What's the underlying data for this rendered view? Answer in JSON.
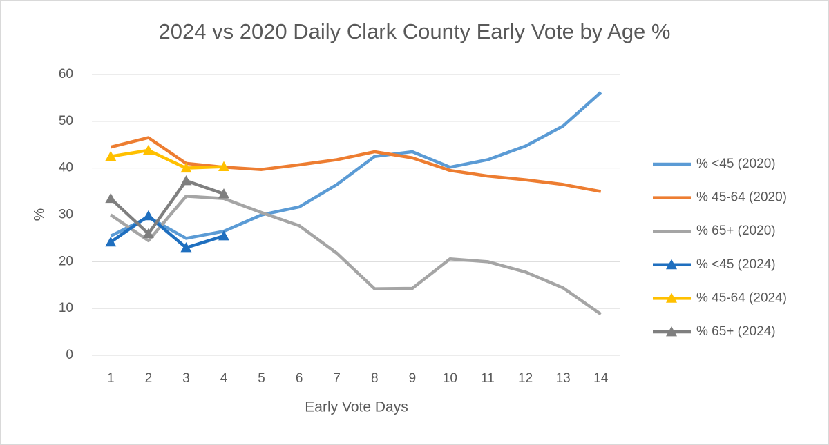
{
  "chart_data": {
    "type": "line",
    "title": "2024 vs 2020 Daily Clark County Early Vote by Age %",
    "x_label": "Early Vote Days",
    "y_label": "%",
    "x": [
      1,
      2,
      3,
      4,
      5,
      6,
      7,
      8,
      9,
      10,
      11,
      12,
      13,
      14
    ],
    "xlim": [
      0.5,
      14.5
    ],
    "xticks": [
      1,
      2,
      3,
      4,
      5,
      6,
      7,
      8,
      9,
      10,
      11,
      12,
      13,
      14
    ],
    "ylim": [
      0,
      60
    ],
    "yticks": [
      0,
      10,
      20,
      30,
      40,
      50,
      60
    ],
    "grid": true,
    "legend": "right",
    "series": [
      {
        "name": "% <45 (2020)",
        "color": "#5b9bd5",
        "values": [
          25.5,
          29.5,
          25,
          26.5,
          30,
          31.7,
          36.5,
          42.5,
          43.5,
          40.2,
          41.8,
          44.7,
          49,
          56.2
        ]
      },
      {
        "name": "% 45-64 (2020)",
        "color": "#ed7d31",
        "values": [
          44.5,
          46.5,
          41,
          40.2,
          39.7,
          40.7,
          41.8,
          43.5,
          42.2,
          39.5,
          38.3,
          37.5,
          36.5,
          35
        ]
      },
      {
        "name": "% 65+ (2020)",
        "color": "#a5a5a5",
        "values": [
          30,
          24.5,
          34,
          33.5,
          30.5,
          27.7,
          21.8,
          14.2,
          14.3,
          20.6,
          20,
          17.8,
          14.4,
          8.8
        ]
      },
      {
        "name": "% <45 (2024)",
        "color": "#1f6fbf",
        "marker": "triangle",
        "values": [
          24.2,
          29.8,
          23,
          25.5,
          null,
          null,
          null,
          null,
          null,
          null,
          null,
          null,
          null,
          null
        ]
      },
      {
        "name": "% 45-64 (2024)",
        "color": "#ffc000",
        "marker": "triangle",
        "values": [
          42.5,
          43.8,
          40,
          40.3,
          null,
          null,
          null,
          null,
          null,
          null,
          null,
          null,
          null,
          null
        ]
      },
      {
        "name": "% 65+ (2024)",
        "color": "#7f7f7f",
        "marker": "triangle",
        "values": [
          33.5,
          26,
          37.3,
          34.5,
          null,
          null,
          null,
          null,
          null,
          null,
          null,
          null,
          null,
          null
        ]
      }
    ]
  }
}
